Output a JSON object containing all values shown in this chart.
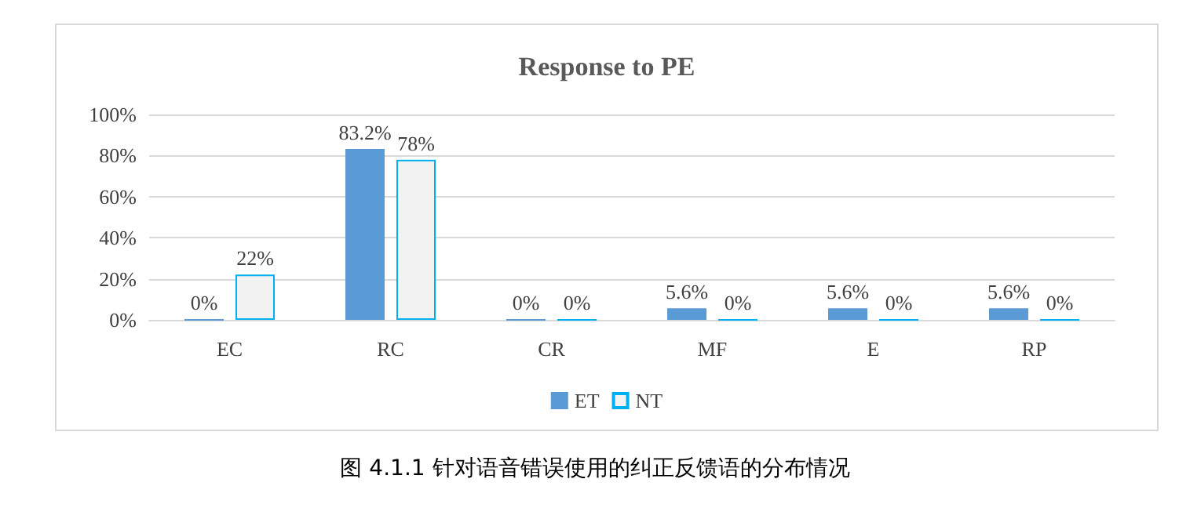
{
  "chart_data": {
    "type": "bar",
    "title": "Response to PE",
    "categories": [
      "EC",
      "RC",
      "CR",
      "MF",
      "E",
      "RP"
    ],
    "series": [
      {
        "name": "ET",
        "color": "#5b9bd5",
        "values": [
          0,
          83.2,
          0,
          5.6,
          5.6,
          5.6
        ],
        "value_labels": [
          "0%",
          "83.2%",
          "0%",
          "5.6%",
          "5.6%",
          "5.6%"
        ]
      },
      {
        "name": "NT",
        "color": "#00b0f0",
        "values": [
          22,
          78,
          0,
          0,
          0,
          0
        ],
        "value_labels": [
          "22%",
          "78%",
          "0%",
          "0%",
          "0%",
          "0%"
        ]
      }
    ],
    "ylim": [
      0,
      100
    ],
    "yticks": [
      {
        "value": 0,
        "label": "0%"
      },
      {
        "value": 20,
        "label": "20%"
      },
      {
        "value": 40,
        "label": "40%"
      },
      {
        "value": 60,
        "label": "60%"
      },
      {
        "value": 80,
        "label": "80%"
      },
      {
        "value": 100,
        "label": "100%"
      }
    ],
    "grid": "y",
    "legend": "bottom",
    "annotations": [
      "图 4.1.1  针对语音错误使用的纠正反馈语的分布情况"
    ]
  }
}
